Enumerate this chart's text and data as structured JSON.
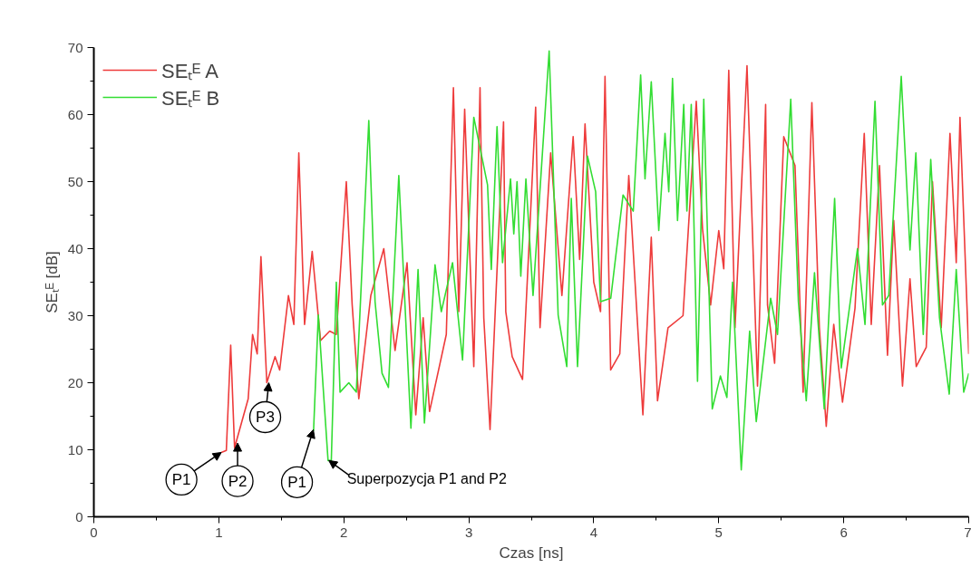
{
  "chart_data": {
    "type": "line",
    "xlabel": "Czas [ns]",
    "ylabel": "SEₜᴱ [dB]",
    "xlim": [
      0,
      7
    ],
    "ylim": [
      0,
      70
    ],
    "xticks": [
      0,
      1,
      2,
      3,
      4,
      5,
      6,
      7
    ],
    "yticks": [
      0,
      10,
      20,
      30,
      40,
      50,
      60,
      70
    ],
    "grid": false,
    "legend": "top left",
    "line_style": "solid",
    "marker": "none",
    "series": [
      {
        "name": "SEₜᴱ A",
        "color": "#ee3b3b",
        "x": [
          1.02,
          1.06,
          1.095,
          1.126,
          1.235,
          1.27,
          1.307,
          1.337,
          1.384,
          1.45,
          1.487,
          1.557,
          1.6,
          1.64,
          1.686,
          1.747,
          1.814,
          1.887,
          1.94,
          2.02,
          2.067,
          2.12,
          2.216,
          2.32,
          2.41,
          2.506,
          2.576,
          2.635,
          2.686,
          2.82,
          2.877,
          2.92,
          2.967,
          3.04,
          3.09,
          3.12,
          3.17,
          3.278,
          3.296,
          3.347,
          3.43,
          3.535,
          3.57,
          3.655,
          3.745,
          3.835,
          3.887,
          3.93,
          4.0,
          4.054,
          4.09,
          4.135,
          4.208,
          4.28,
          4.393,
          4.46,
          4.51,
          4.594,
          4.714,
          4.82,
          4.87,
          4.935,
          5.0,
          5.04,
          5.08,
          5.13,
          5.226,
          5.31,
          5.375,
          5.39,
          5.447,
          5.52,
          5.61,
          5.675,
          5.745,
          5.805,
          5.86,
          5.92,
          5.99,
          6.09,
          6.164,
          6.22,
          6.286,
          6.35,
          6.4,
          6.47,
          6.53,
          6.58,
          6.66,
          6.71,
          6.78,
          6.85,
          6.9,
          6.93,
          7.0
        ],
        "values": [
          9.6,
          9.9,
          25.6,
          10.3,
          17.6,
          27.2,
          24.3,
          38.8,
          20,
          23.9,
          21.9,
          33,
          28.7,
          54.3,
          28.7,
          39.6,
          26.3,
          27.7,
          27.2,
          50,
          31.6,
          17.6,
          33,
          40,
          24.8,
          37.9,
          15.2,
          29.7,
          15.7,
          27.2,
          64,
          30.6,
          60.8,
          22.4,
          64,
          29.7,
          13,
          58.9,
          30.6,
          23.9,
          20.5,
          61.1,
          28.2,
          54.3,
          33,
          56.7,
          38.4,
          58.6,
          35,
          30.6,
          65.7,
          21.9,
          24.3,
          50.9,
          15.2,
          41.7,
          17.3,
          28.2,
          30,
          62,
          43,
          31.6,
          42.7,
          37,
          66.6,
          28.2,
          67.3,
          19.5,
          61.5,
          31.6,
          22.9,
          56.7,
          52.4,
          18.6,
          61.8,
          28.2,
          13.5,
          28.7,
          17.1,
          31.1,
          57.2,
          28.7,
          52.4,
          24.1,
          44.2,
          19.5,
          35.5,
          22.4,
          25.3,
          50,
          28.2,
          57.2,
          37.9,
          59.6,
          24.3
        ]
      },
      {
        "name": "SEₜᴱ B",
        "color": "#33dd33",
        "x": [
          1.758,
          1.796,
          1.874,
          1.9,
          1.94,
          1.97,
          2.04,
          2.1,
          2.2,
          2.25,
          2.306,
          2.357,
          2.44,
          2.537,
          2.594,
          2.645,
          2.73,
          2.78,
          2.87,
          2.95,
          3.04,
          3.15,
          3.18,
          3.226,
          3.27,
          3.334,
          3.36,
          3.386,
          3.416,
          3.457,
          3.514,
          3.643,
          3.715,
          3.784,
          3.82,
          3.87,
          3.95,
          4.015,
          4.054,
          4.136,
          4.234,
          4.316,
          4.375,
          4.41,
          4.46,
          4.52,
          4.57,
          4.6,
          4.63,
          4.67,
          4.72,
          4.745,
          4.78,
          4.83,
          4.88,
          4.948,
          5.013,
          5.065,
          5.11,
          5.18,
          5.247,
          5.3,
          5.415,
          5.47,
          5.576,
          5.637,
          5.7,
          5.766,
          5.844,
          5.927,
          5.98,
          6.11,
          6.17,
          6.25,
          6.31,
          6.36,
          6.46,
          6.53,
          6.577,
          6.636,
          6.696,
          6.766,
          6.844,
          6.9,
          6.96,
          7.0
        ],
        "values": [
          12.8,
          30.1,
          8.4,
          8.4,
          35,
          18.6,
          20,
          18.6,
          59.1,
          32.1,
          21.4,
          19.3,
          50.9,
          13.2,
          36.9,
          14,
          37.6,
          30.6,
          37.9,
          23.4,
          59.6,
          49.5,
          36.9,
          58.2,
          37.9,
          50.4,
          42.2,
          50,
          35.9,
          50.4,
          33,
          69.5,
          30.1,
          22.4,
          47.5,
          22.4,
          53.8,
          48.5,
          32.1,
          32.6,
          48,
          45.6,
          65.9,
          50.4,
          64.9,
          42.7,
          57.2,
          48.5,
          65.4,
          44.2,
          61.5,
          45.6,
          61.5,
          20.2,
          62.3,
          16.1,
          21,
          17.8,
          35,
          7,
          27.7,
          14.2,
          32.6,
          27.2,
          62.3,
          32.1,
          17.3,
          36.4,
          16.1,
          47.5,
          22.2,
          40,
          28.7,
          62,
          31.6,
          33,
          65.7,
          39.8,
          54.3,
          27.2,
          53.3,
          29.7,
          18.3,
          36.9,
          18.6,
          21.4
        ]
      }
    ],
    "annotations": [
      {
        "text": "P1",
        "x": 1.02,
        "y": 9.6
      },
      {
        "text": "P2",
        "x": 1.15,
        "y": 11
      },
      {
        "text": "P3",
        "x": 1.4,
        "y": 20
      },
      {
        "text": "P1",
        "x": 1.756,
        "y": 13
      },
      {
        "text": "Superpozycja P1 and P2",
        "x": 1.88,
        "y": 8.4
      }
    ]
  }
}
